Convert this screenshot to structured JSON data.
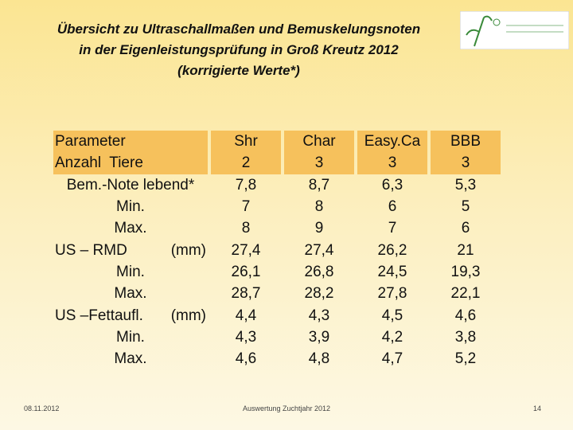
{
  "title": {
    "lines": [
      "Übersicht zu  Ultraschallmaßen und Bemuskelungsnoten",
      "in der Eigenleistungsprüfung in Groß Kreutz 2012",
      "(korrigierte Werte*)"
    ]
  },
  "table": {
    "header": {
      "label": "Parameter",
      "cells": [
        "Shr",
        "Char",
        "Easy.Ca",
        "BBB"
      ]
    },
    "rows": [
      {
        "label": "Anzahl  Tiere",
        "cells": [
          "2",
          "3",
          "3",
          "3"
        ]
      },
      {
        "label": "Bem.-Note lebend*",
        "cells": [
          "7,8",
          "8,7",
          "6,3",
          "5,3"
        ]
      },
      {
        "label": "Min.",
        "cells": [
          "7",
          "8",
          "6",
          "5"
        ]
      },
      {
        "label": "Max.",
        "cells": [
          "8",
          "9",
          "7",
          "6"
        ]
      },
      {
        "label": "US – RMD",
        "unit": "(mm)",
        "cells": [
          "27,4",
          "27,4",
          "26,2",
          "21"
        ]
      },
      {
        "label": "Min.",
        "cells": [
          "26,1",
          "26,8",
          "24,5",
          "19,3"
        ]
      },
      {
        "label": "Max.",
        "cells": [
          "28,7",
          "28,2",
          "27,8",
          "22,1"
        ]
      },
      {
        "label": "US –Fettaufl.",
        "unit": "(mm)",
        "cells": [
          "4,4",
          "4,3",
          "4,5",
          "4,6"
        ]
      },
      {
        "label": "Min.",
        "cells": [
          "4,3",
          "3,9",
          "4,2",
          "3,8"
        ]
      },
      {
        "label": "Max.",
        "cells": [
          "4,6",
          "4,8",
          "4,7",
          "5,2"
        ]
      }
    ]
  },
  "footer": {
    "date": "08.11.2012",
    "center": "Auswertung Zuchtjahr 2012",
    "page": "14"
  }
}
